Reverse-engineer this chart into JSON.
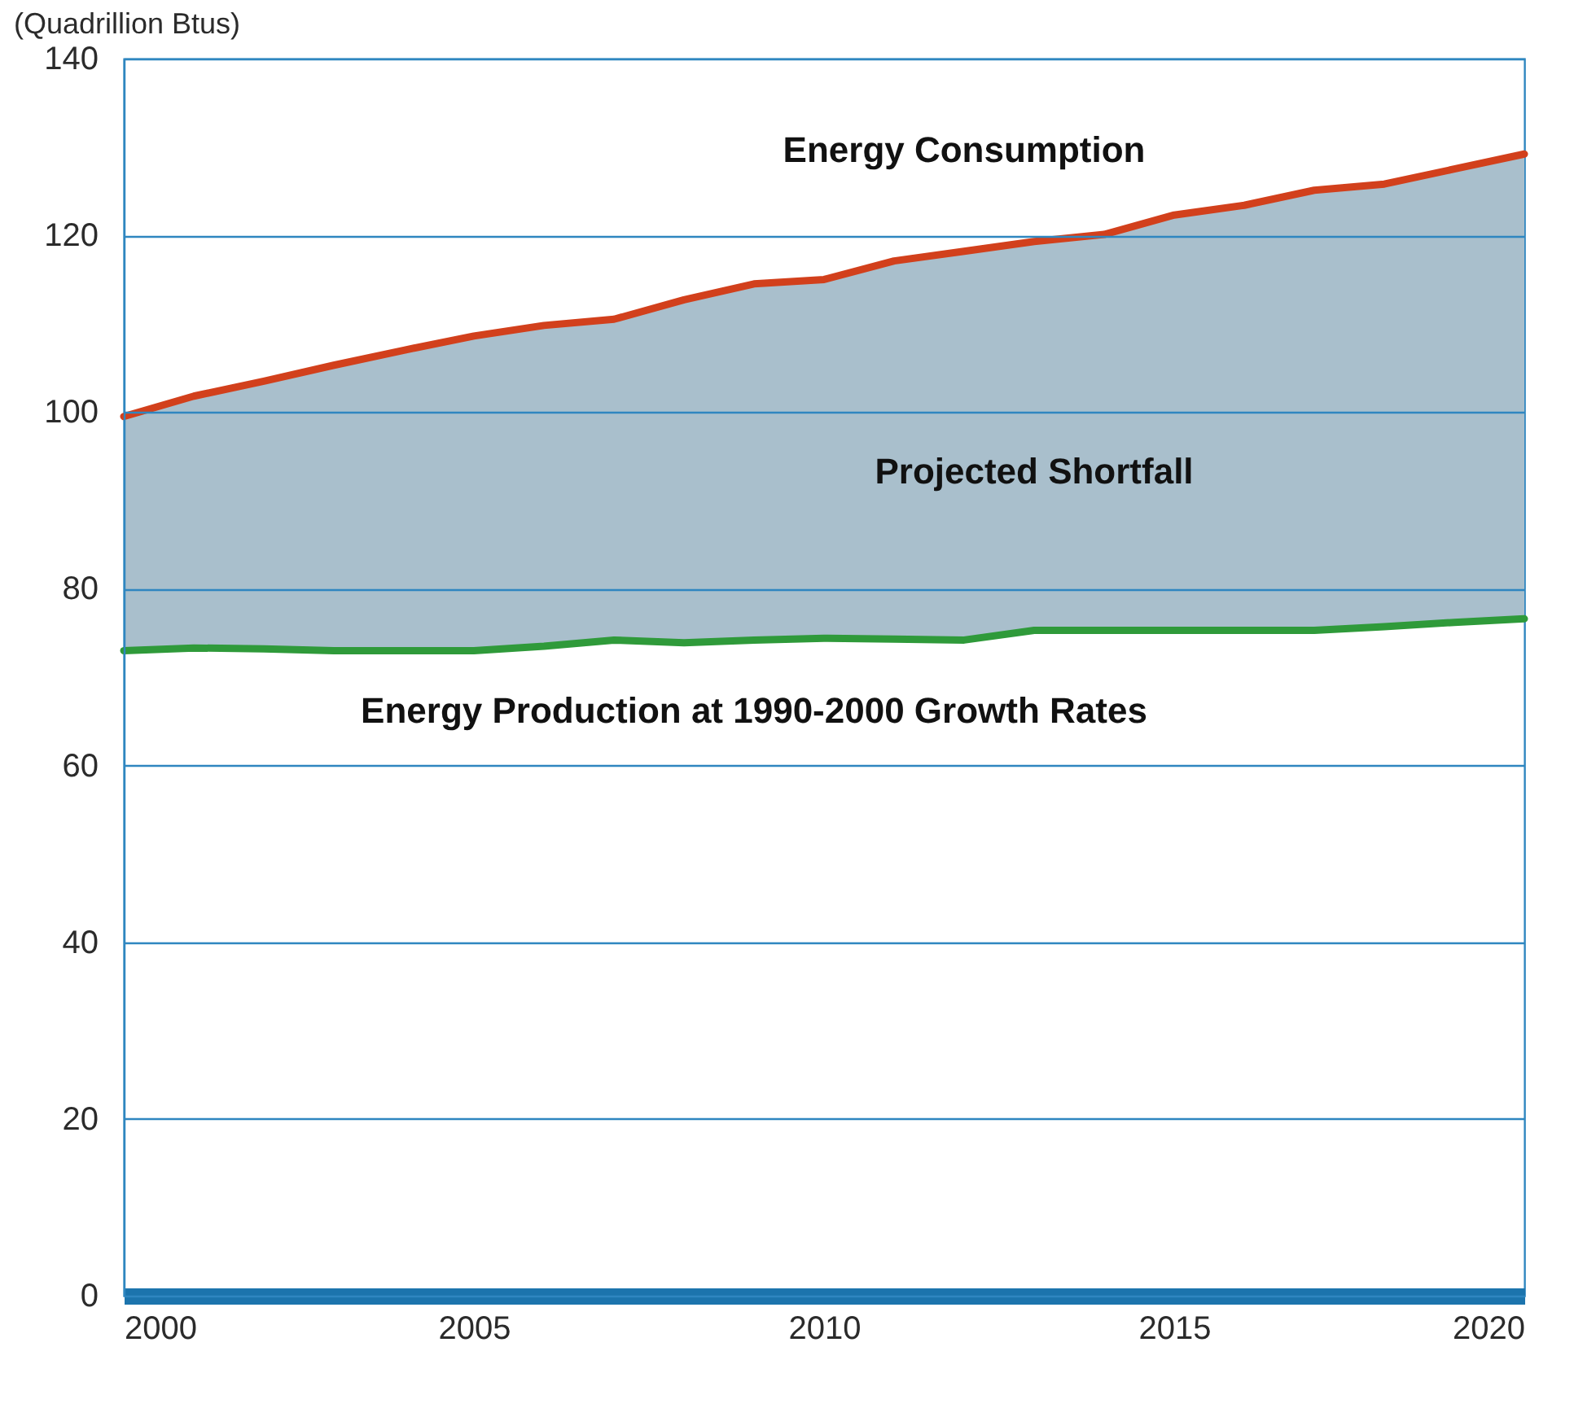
{
  "chart_data": {
    "type": "line",
    "ylabel": "(Quadrillion Btus)",
    "x": [
      2000,
      2001,
      2002,
      2003,
      2004,
      2005,
      2006,
      2007,
      2008,
      2009,
      2010,
      2011,
      2012,
      2013,
      2014,
      2015,
      2016,
      2017,
      2018,
      2019,
      2020
    ],
    "xlim": [
      2000,
      2020
    ],
    "xticks": [
      2000,
      2005,
      2010,
      2015,
      2020
    ],
    "ylim": [
      0,
      140
    ],
    "yticks": [
      0,
      20,
      40,
      60,
      80,
      100,
      120,
      140
    ],
    "grid": "y",
    "legend": false,
    "annotations": [
      "Projected Shortfall"
    ],
    "series": [
      {
        "name": "Energy Consumption",
        "color": "#d2401c",
        "values": [
          99.5,
          101.8,
          103.5,
          105.3,
          107.0,
          108.6,
          109.8,
          110.5,
          112.7,
          114.5,
          115.0,
          117.1,
          118.2,
          119.3,
          120.1,
          122.3,
          123.4,
          125.1,
          125.8,
          127.5,
          129.2
        ],
        "lower": [
          73.0,
          73.3,
          73.2,
          73.0,
          73.0,
          73.0,
          73.5,
          74.2,
          73.9,
          74.2,
          74.4,
          74.3,
          74.2,
          75.3,
          75.3,
          75.3,
          75.3,
          75.3,
          75.7,
          76.2,
          76.6
        ],
        "upper": [
          99.5,
          101.8,
          103.5,
          105.3,
          107.0,
          108.6,
          109.8,
          110.5,
          112.7,
          114.5,
          115.0,
          117.1,
          118.2,
          119.3,
          120.1,
          122.3,
          123.4,
          125.1,
          125.8,
          127.5,
          129.2
        ]
      },
      {
        "name": "Energy Production at 1990-2000 Growth Rates",
        "color": "#2f9a3a",
        "values": [
          73.0,
          73.3,
          73.2,
          73.0,
          73.0,
          73.0,
          73.5,
          74.2,
          73.9,
          74.2,
          74.4,
          74.3,
          74.2,
          75.3,
          75.3,
          75.3,
          75.3,
          75.3,
          75.7,
          76.2,
          76.6
        ]
      }
    ]
  }
}
